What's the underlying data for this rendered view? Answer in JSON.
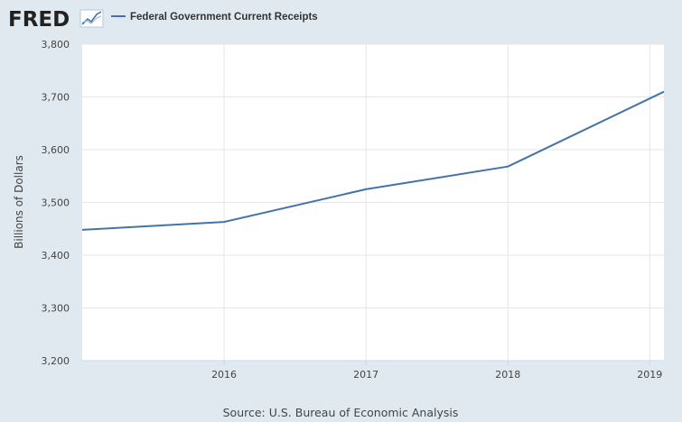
{
  "header": {
    "logo_text": "FRED",
    "logo_icon": "chart-line-icon"
  },
  "footer": {
    "source": "Source: U.S. Bureau of Economic Analysis"
  },
  "colors": {
    "background": "#e1e9f0",
    "plot_background": "#ffffff",
    "series": "#4572a7",
    "grid": "#e6e6e6",
    "text": "#444444"
  },
  "chart_data": {
    "type": "line",
    "title": "",
    "legend_position": "top-left",
    "xlabel": "",
    "ylabel": "Billions of Dollars",
    "xlim": [
      2015.0,
      2019.1
    ],
    "ylim": [
      3200,
      3800
    ],
    "y_ticks": [
      3200,
      3300,
      3400,
      3500,
      3600,
      3700,
      3800
    ],
    "y_tick_labels": [
      "3,200",
      "3,300",
      "3,400",
      "3,500",
      "3,600",
      "3,700",
      "3,800"
    ],
    "x_ticks": [
      2016,
      2017,
      2018,
      2019
    ],
    "x_tick_labels": [
      "2016",
      "2017",
      "2018",
      "2019"
    ],
    "grid": true,
    "series": [
      {
        "name": "Federal Government Current Receipts",
        "x": [
          2015.0,
          2016.0,
          2017.0,
          2018.0,
          2019.1
        ],
        "values": [
          3448,
          3463,
          3525,
          3568,
          3710
        ]
      }
    ]
  }
}
